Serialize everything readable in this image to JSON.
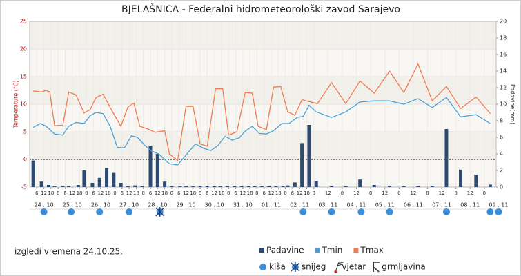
{
  "chart_data": {
    "type": "combo",
    "title": "BJELAŠNICA - Federalni hidrometeorološki zavod Sarajevo",
    "ylabel": "Temperature (°C)",
    "y2label": "Padavine(mm)",
    "subtitle": "izgledi vremena 24.10.25.",
    "xlim": [
      0,
      394
    ],
    "ylim": [
      -5,
      25
    ],
    "yticks": [
      -5,
      0,
      5,
      10,
      15,
      20,
      25
    ],
    "y2lim": [
      0,
      20
    ],
    "y2ticks": [
      0,
      2,
      4,
      6,
      8,
      10,
      12,
      14,
      16,
      18,
      20
    ],
    "xticks": [
      6,
      12,
      18,
      {
        "value": 24,
        "label": "0"
      },
      {
        "value": 30,
        "label": "6"
      },
      {
        "value": 36,
        "label": "12"
      },
      {
        "value": 42,
        "label": "18"
      },
      {
        "value": 48,
        "label": "0"
      },
      {
        "value": 54,
        "label": "6"
      },
      {
        "value": 60,
        "label": "12"
      },
      {
        "value": 66,
        "label": "18"
      },
      {
        "value": 72,
        "label": "0"
      },
      {
        "value": 78,
        "label": "6"
      },
      {
        "value": 84,
        "label": "12"
      },
      {
        "value": 90,
        "label": "18"
      },
      {
        "value": 96,
        "label": "0"
      },
      {
        "value": 102,
        "label": "6"
      },
      {
        "value": 108,
        "label": "12"
      },
      {
        "value": 114,
        "label": "18"
      },
      {
        "value": 120,
        "label": "0"
      },
      {
        "value": 126,
        "label": "6"
      },
      {
        "value": 132,
        "label": "12"
      },
      {
        "value": 138,
        "label": "18"
      },
      {
        "value": 144,
        "label": "0"
      },
      {
        "value": 150,
        "label": "6"
      },
      {
        "value": 156,
        "label": "12"
      },
      {
        "value": 162,
        "label": "18"
      },
      {
        "value": 168,
        "label": "0"
      },
      {
        "value": 174,
        "label": "6"
      },
      {
        "value": 180,
        "label": "12"
      },
      {
        "value": 186,
        "label": "18"
      },
      {
        "value": 192,
        "label": "0"
      },
      {
        "value": 198,
        "label": "6"
      },
      {
        "value": 204,
        "label": "12"
      },
      {
        "value": 210,
        "label": "18"
      },
      {
        "value": 216,
        "label": "0"
      },
      {
        "value": 222,
        "label": "6"
      },
      {
        "value": 228,
        "label": "12"
      },
      {
        "value": 234,
        "label": "18"
      },
      {
        "value": 240,
        "label": "0"
      },
      {
        "value": 252,
        "label": "12"
      },
      {
        "value": 264,
        "label": "0"
      },
      {
        "value": 276,
        "label": "12"
      },
      {
        "value": 288,
        "label": "0"
      },
      {
        "value": 300,
        "label": "12"
      },
      {
        "value": 312,
        "label": "0"
      },
      {
        "value": 324,
        "label": "12"
      },
      {
        "value": 336,
        "label": "0"
      },
      {
        "value": 348,
        "label": "12"
      },
      {
        "value": 360,
        "label": "0"
      },
      {
        "value": 372,
        "label": "12"
      },
      {
        "value": 384,
        "label": "0"
      }
    ],
    "days": [
      {
        "value": 12,
        "label": "24 . 10"
      },
      {
        "value": 36,
        "label": "25 . 10"
      },
      {
        "value": 60,
        "label": "26 . 10"
      },
      {
        "value": 84,
        "label": "27 . 10"
      },
      {
        "value": 108,
        "label": "28 . 10"
      },
      {
        "value": 132,
        "label": "29 . 10"
      },
      {
        "value": 156,
        "label": "30 . 10"
      },
      {
        "value": 180,
        "label": "31 . 10"
      },
      {
        "value": 204,
        "label": "01 . 11"
      },
      {
        "value": 228,
        "label": "02 . 11"
      },
      {
        "value": 252,
        "label": "03 . 11"
      },
      {
        "value": 276,
        "label": "04 . 11"
      },
      {
        "value": 300,
        "label": "05 . 11"
      },
      {
        "value": 324,
        "label": "06 . 11"
      },
      {
        "value": 348,
        "label": "07 . 11"
      },
      {
        "value": 372,
        "label": "08 . 11"
      },
      {
        "value": 396,
        "label": "09 . 11"
      }
    ],
    "series": [
      {
        "name": "Padavine",
        "color": "#2e4a70",
        "axis": "y2",
        "type": "bar",
        "x": [
          3,
          10,
          16,
          21,
          28,
          33,
          41,
          46,
          53,
          59,
          65,
          71,
          77,
          83,
          89,
          95,
          102,
          108,
          114,
          120,
          127,
          132,
          138,
          144,
          150,
          156,
          161,
          167,
          173,
          179,
          185,
          190,
          196,
          202,
          208,
          214,
          218,
          224,
          230,
          236,
          242,
          255,
          267,
          279,
          291,
          304,
          316,
          328,
          340,
          352,
          364,
          377,
          389
        ],
        "values": [
          3.2,
          0.65,
          0.25,
          0.1,
          0.15,
          0.15,
          0.25,
          2.0,
          0.5,
          1.1,
          2.3,
          1.7,
          0.5,
          0.1,
          0.2,
          0.1,
          5.0,
          4.0,
          0.65,
          0.05,
          0.05,
          0.05,
          0.05,
          0.05,
          0.05,
          0.05,
          0.05,
          0.05,
          0.05,
          0.05,
          0.05,
          0.05,
          0.05,
          0.05,
          0.05,
          0.05,
          0.2,
          0.55,
          5.3,
          7.5,
          0.75,
          0.05,
          0.05,
          0.9,
          0.25,
          0.15,
          0.05,
          0.05,
          0.05,
          7.0,
          2.1,
          1.5,
          0.3
        ]
      },
      {
        "name": "Tmin",
        "color": "#4a9fd6",
        "type": "line",
        "x": [
          3,
          9,
          14,
          21,
          28,
          33,
          39,
          46,
          51,
          56,
          62,
          68,
          74,
          80,
          86,
          91,
          97,
          103,
          109,
          118,
          125,
          140,
          147,
          153,
          159,
          165,
          171,
          177,
          182,
          188,
          194,
          200,
          206,
          213,
          219,
          226,
          231,
          236,
          242,
          255,
          267,
          279,
          291,
          304,
          316,
          328,
          340,
          352,
          364,
          377,
          389
        ],
        "values": [
          5.8,
          6.5,
          6,
          4.6,
          4.4,
          6,
          6.7,
          6.5,
          7.9,
          8.5,
          8.3,
          6,
          2.2,
          2.1,
          4.3,
          4,
          2.6,
          1.5,
          1,
          -0.8,
          -1,
          2.8,
          2,
          1.6,
          2.5,
          4.2,
          3.5,
          3.9,
          5.1,
          6,
          4.7,
          4.6,
          5.2,
          6.5,
          6.5,
          7.6,
          7.8,
          9.8,
          8.6,
          7.6,
          8.6,
          10.4,
          10.6,
          10.6,
          10,
          11,
          9.4,
          11.2,
          7.7,
          8.1,
          6.5
        ]
      },
      {
        "name": "Tmax",
        "color": "#f07a4f",
        "type": "line",
        "x": [
          3,
          10,
          14,
          17,
          21,
          28,
          33,
          39,
          46,
          51,
          56,
          62,
          69,
          77,
          83,
          88,
          93,
          100,
          106,
          114,
          118,
          125,
          132,
          138,
          144,
          150,
          157,
          163,
          168,
          175,
          182,
          188,
          193,
          200,
          206,
          212,
          218,
          224,
          230,
          243,
          255,
          267,
          279,
          291,
          304,
          316,
          328,
          340,
          352,
          364,
          377,
          389
        ],
        "values": [
          12.4,
          12.2,
          12.5,
          12.2,
          6.1,
          6.2,
          12.2,
          11.7,
          8.4,
          9,
          11.2,
          11.8,
          9,
          6,
          9.5,
          10.2,
          6,
          5.5,
          4.9,
          5.2,
          1,
          -0.2,
          9.6,
          9.6,
          2.8,
          2.4,
          12.8,
          12.8,
          4.4,
          5,
          12.1,
          12,
          6,
          5.4,
          13.1,
          13.2,
          8.6,
          8,
          10.8,
          10.1,
          13.9,
          10.1,
          14.2,
          12,
          16,
          12.1,
          17.3,
          10.6,
          13.2,
          9.2,
          11.3,
          8.3
        ]
      }
    ],
    "symbols": [
      "kiša",
      "snijeg",
      "vjetar",
      "grmljavina"
    ],
    "weather": [
      {
        "x": 12,
        "kind": "kiša"
      },
      {
        "x": 35,
        "kind": "kiša"
      },
      {
        "x": 59,
        "kind": "kiša"
      },
      {
        "x": 84,
        "kind": "kiša"
      },
      {
        "x": 110,
        "kind": "snijeg"
      },
      {
        "x": 231,
        "kind": "kiša"
      },
      {
        "x": 255,
        "kind": "kiša"
      },
      {
        "x": 280,
        "kind": "kiša"
      },
      {
        "x": 304,
        "kind": "kiša"
      },
      {
        "x": 352,
        "kind": "kiša"
      },
      {
        "x": 389,
        "kind": "kiša"
      },
      {
        "x": 396,
        "kind": "kiša"
      }
    ],
    "grid": true
  }
}
